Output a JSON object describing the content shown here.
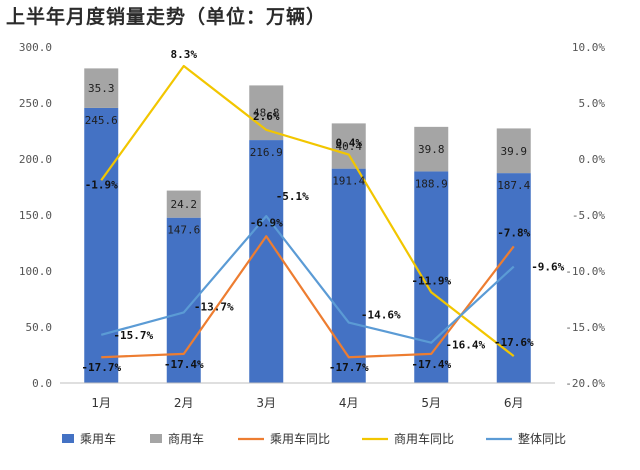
{
  "title": "上半年月度销量走势（单位：万辆）",
  "colors": {
    "passenger": "#4472c4",
    "commercial": "#a5a5a5",
    "passenger_yoy": "#ed7d31",
    "commercial_yoy": "#f2c600",
    "overall_yoy": "#5b9bd5"
  },
  "chart_data": {
    "type": "bar",
    "stacked": true,
    "title": "上半年月度销量走势（单位：万辆）",
    "categories": [
      "1月",
      "2月",
      "3月",
      "4月",
      "5月",
      "6月"
    ],
    "ylim": [
      0,
      300
    ],
    "yticks": [
      "0.0",
      "50.0",
      "100.0",
      "150.0",
      "200.0",
      "250.0",
      "300.0"
    ],
    "y2lim": [
      -20,
      10
    ],
    "y2ticks": [
      "-20.0%",
      "-15.0%",
      "-10.0%",
      "-5.0%",
      "0.0%",
      "5.0%",
      "10.0%"
    ],
    "series": [
      {
        "name": "乘用车",
        "type": "bar",
        "values": [
          245.6,
          147.6,
          216.9,
          191.4,
          188.9,
          187.4
        ],
        "labels": [
          "245.6",
          "147.6",
          "216.9",
          "191.4",
          "188.9",
          "187.4"
        ]
      },
      {
        "name": "商用车",
        "type": "bar",
        "values": [
          35.3,
          24.2,
          48.8,
          40.4,
          39.8,
          39.9
        ],
        "labels": [
          "35.3",
          "24.2",
          "48.8",
          "40.4",
          "39.8",
          "39.9"
        ]
      },
      {
        "name": "乘用车同比",
        "type": "line",
        "axis": "right",
        "values": [
          -17.7,
          -17.4,
          -6.9,
          -17.7,
          -17.4,
          -7.8
        ],
        "labels": [
          "-17.7%",
          "-17.4%",
          "-6.9%",
          "-17.7%",
          "-17.4%",
          "-7.8%"
        ]
      },
      {
        "name": "商用车同比",
        "type": "line",
        "axis": "right",
        "values": [
          -1.9,
          8.3,
          2.6,
          0.4,
          -11.9,
          -17.6
        ],
        "labels": [
          "-1.9%",
          "8.3%",
          "2.6%",
          "0.4%",
          "-11.9%",
          "-17.6%"
        ]
      },
      {
        "name": "整体同比",
        "type": "line",
        "axis": "right",
        "values": [
          -15.7,
          -13.7,
          -5.1,
          -14.6,
          -16.4,
          -9.6
        ],
        "labels": [
          "-15.7%",
          "-13.7%",
          "-5.1%",
          "-14.6%",
          "-16.4%",
          "-9.6%"
        ]
      }
    ],
    "legend": {
      "position": "bottom",
      "entries": [
        "乘用车",
        "商用车",
        "乘用车同比",
        "商用车同比",
        "整体同比"
      ]
    }
  }
}
